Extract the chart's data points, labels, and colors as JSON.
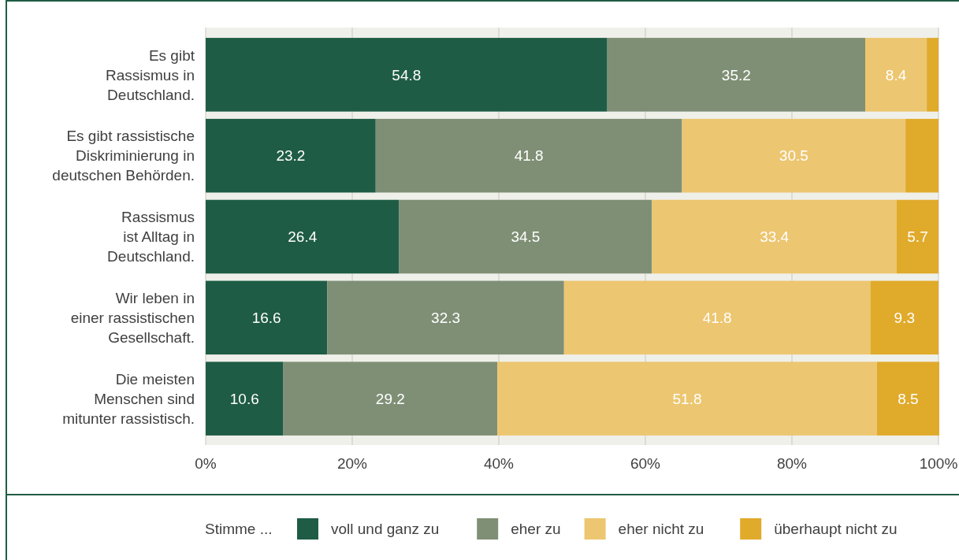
{
  "chart_data": {
    "type": "bar",
    "orientation": "horizontal",
    "stacked": true,
    "categories": [
      "Es gibt\nRassismus in\nDeutschland.",
      "Es gibt rassistische\nDiskriminierung in\ndeutschen Behörden.",
      "Rassismus\nist Alltag in\nDeutschland.",
      "Wir leben in\neiner rassistischen\nGesellschaft.",
      "Die meisten\nMenschen sind\nmitunter rassistisch."
    ],
    "series": [
      {
        "name": "voll und ganz zu",
        "color": "#1f5c45",
        "values": [
          54.8,
          23.2,
          26.4,
          16.6,
          10.6
        ],
        "value_labels": [
          "54.8",
          "23.2",
          "26.4",
          "16.6",
          "10.6"
        ]
      },
      {
        "name": "eher zu",
        "color": "#7f8f75",
        "values": [
          35.2,
          41.8,
          34.5,
          32.3,
          29.2
        ],
        "value_labels": [
          "35.2",
          "41.8",
          "34.5",
          "32.3",
          "29.2"
        ]
      },
      {
        "name": "eher nicht zu",
        "color": "#ecc670",
        "values": [
          8.4,
          30.5,
          33.4,
          41.8,
          51.8
        ],
        "value_labels": [
          "8.4",
          "30.5",
          "33.4",
          "41.8",
          "51.8"
        ]
      },
      {
        "name": "überhaupt nicht zu",
        "color": "#e0aa2b",
        "values": [
          1.6,
          4.5,
          5.7,
          9.3,
          8.5
        ],
        "value_labels": [
          null,
          null,
          "5.7",
          "9.3",
          "8.5"
        ]
      }
    ],
    "xlim": [
      0,
      100
    ],
    "xticks": [
      {
        "value": 0,
        "label": "0%"
      },
      {
        "value": 20,
        "label": "20%"
      },
      {
        "value": 40,
        "label": "40%"
      },
      {
        "value": 60,
        "label": "60%"
      },
      {
        "value": 80,
        "label": "80%"
      },
      {
        "value": 100,
        "label": "100%"
      }
    ],
    "grid": "x",
    "legend": "bottom",
    "legend_title": "Stimme ..."
  }
}
